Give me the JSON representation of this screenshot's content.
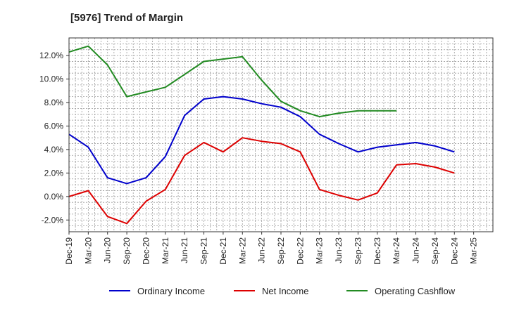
{
  "chart_data": {
    "type": "line",
    "title": "[5976]  Trend of Margin",
    "xlabel": "",
    "ylabel": "",
    "ylim": [
      -3.0,
      13.5
    ],
    "yticks": [
      -2.0,
      0.0,
      2.0,
      4.0,
      6.0,
      8.0,
      10.0,
      12.0
    ],
    "ytick_labels": [
      "-2.0%",
      "0.0%",
      "2.0%",
      "4.0%",
      "6.0%",
      "8.0%",
      "10.0%",
      "12.0%"
    ],
    "grid": true,
    "legend_position": "bottom",
    "categories": [
      "Dec-19",
      "Mar-20",
      "Jun-20",
      "Sep-20",
      "Dec-20",
      "Mar-21",
      "Jun-21",
      "Sep-21",
      "Dec-21",
      "Mar-22",
      "Jun-22",
      "Sep-22",
      "Dec-22",
      "Mar-23",
      "Jun-23",
      "Sep-23",
      "Dec-23",
      "Mar-24",
      "Jun-24",
      "Sep-24",
      "Dec-24",
      "Mar-25"
    ],
    "series": [
      {
        "name": "Ordinary Income",
        "color": "#0000cc",
        "values": [
          5.3,
          4.2,
          1.6,
          1.1,
          1.6,
          3.4,
          6.9,
          8.3,
          8.5,
          8.3,
          7.9,
          7.6,
          6.8,
          5.3,
          4.5,
          3.8,
          4.2,
          4.4,
          4.6,
          4.3,
          3.8,
          null
        ]
      },
      {
        "name": "Net Income",
        "color": "#dd0000",
        "values": [
          0.0,
          0.5,
          -1.7,
          -2.3,
          -0.4,
          0.6,
          3.5,
          4.6,
          3.8,
          5.0,
          4.7,
          4.5,
          3.8,
          0.6,
          0.1,
          -0.3,
          0.3,
          2.7,
          2.8,
          2.5,
          2.0,
          null
        ]
      },
      {
        "name": "Operating Cashflow",
        "color": "#228b22",
        "values": [
          12.3,
          12.8,
          11.2,
          8.5,
          8.9,
          9.3,
          10.4,
          11.5,
          11.7,
          11.9,
          9.9,
          8.1,
          7.3,
          6.8,
          7.1,
          7.3,
          7.3,
          7.3,
          null,
          null,
          null,
          null
        ]
      }
    ]
  }
}
